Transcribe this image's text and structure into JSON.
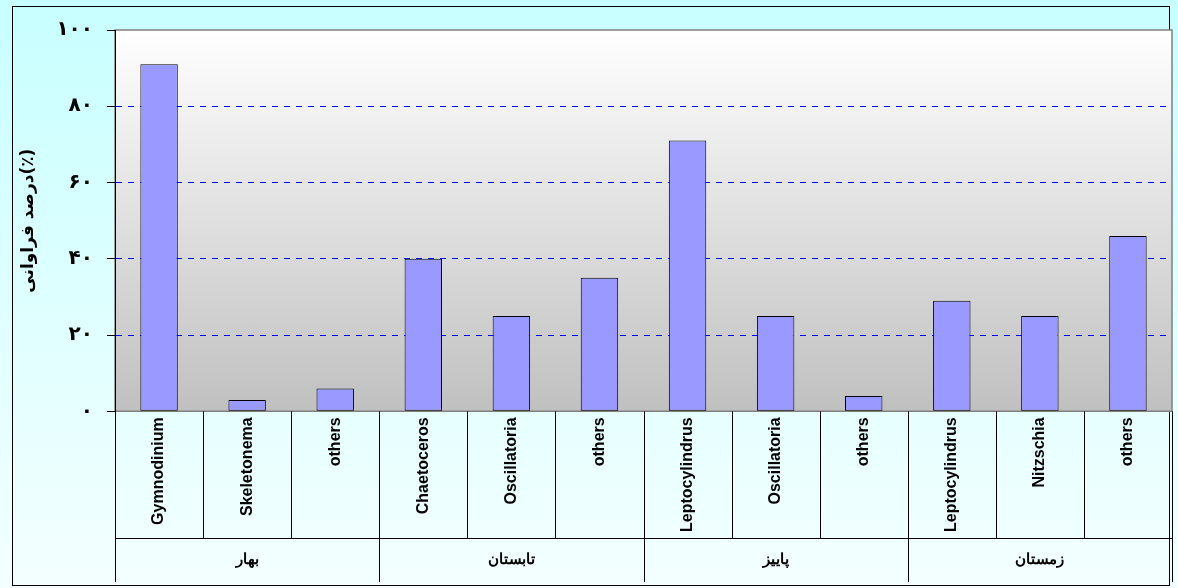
{
  "chart_data": {
    "type": "bar",
    "ylabel": "درصد فراوانی(٪)",
    "categories": [
      "Gymnodinium",
      "Skeletonema",
      "others",
      "Chaetoceros",
      "Oscillatoria",
      "others",
      "Leptocylindrus",
      "Oscillatoria",
      "others",
      "Leptocylindrus",
      "Nitzschia",
      "others"
    ],
    "values": [
      91,
      3,
      6,
      40,
      25,
      35,
      71,
      25,
      4,
      29,
      25,
      46
    ],
    "color": "#9999ff",
    "ylim": [
      0,
      100
    ],
    "yticks": [
      {
        "value": 0,
        "label": "۰"
      },
      {
        "value": 20,
        "label": "۲۰"
      },
      {
        "value": 40,
        "label": "۴۰"
      },
      {
        "value": 60,
        "label": "۶۰"
      },
      {
        "value": 80,
        "label": "۸۰"
      },
      {
        "value": 100,
        "label": "۱۰۰"
      }
    ],
    "grid": "y",
    "legend": false,
    "annotations": [
      "بهار",
      "تابستان",
      "پاییز",
      "زمستان"
    ]
  }
}
